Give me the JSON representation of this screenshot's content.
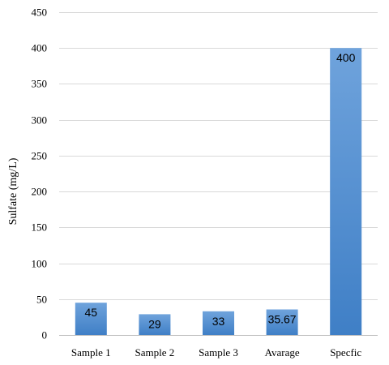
{
  "chart_data": {
    "type": "bar",
    "categories": [
      "Sample 1",
      "Sample 2",
      "Sample 3",
      "Avarage",
      "Specfic"
    ],
    "values": [
      45,
      29,
      33,
      35.67,
      400
    ],
    "data_labels": [
      "45",
      "29",
      "33",
      "35.67",
      "400"
    ],
    "title": "",
    "xlabel": "",
    "ylabel": "Sulfate (mg/L)",
    "ylim": [
      0,
      450
    ],
    "yticks": [
      0,
      50,
      100,
      150,
      200,
      250,
      300,
      350,
      400,
      450
    ],
    "grid": true,
    "legend": "none",
    "colors": {
      "bar_top": "#6fa3dc",
      "bar_bottom": "#3f7fc6",
      "gridline": "#d9d9d9"
    }
  }
}
